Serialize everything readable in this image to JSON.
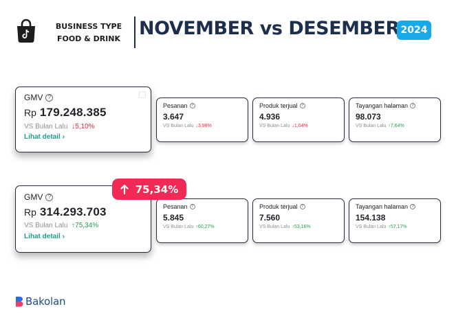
{
  "header": {
    "business_type_line1": "BUSINESS TYPE",
    "business_type_line2": "FOOD & DRINK",
    "title": "NOVEMBER vs DESEMBER",
    "year": "2024",
    "logo_icon": "shopping-bag-tiktok-icon"
  },
  "november": {
    "gmv": {
      "label": "GMV",
      "currency": "Rp",
      "value": "179.248.385",
      "vs_label": "VS Bulan Lalu",
      "change": "5,10%",
      "direction": "down",
      "detail_link": "Lihat detail"
    },
    "metrics": [
      {
        "label": "Pesanan",
        "value": "3.647",
        "vs_label": "VS Bulan Lalu",
        "change": "3,98%",
        "direction": "down"
      },
      {
        "label": "Produk terjual",
        "value": "4.936",
        "vs_label": "VS Bulan Lalu",
        "change": "1,04%",
        "direction": "down"
      },
      {
        "label": "Tayangan halaman",
        "value": "98.073",
        "vs_label": "VS Bulan Lalu",
        "change": "7,64%",
        "direction": "up"
      }
    ]
  },
  "desember": {
    "highlight": "75,34%",
    "gmv": {
      "label": "GMV",
      "currency": "Rp",
      "value": "314.293.703",
      "vs_label": "VS Bulan Lalu",
      "change": "75,34%",
      "direction": "up",
      "detail_link": "Lihat detail"
    },
    "metrics": [
      {
        "label": "Pesanan",
        "value": "5.845",
        "vs_label": "VS Bulan Lalu",
        "change": "60,27%",
        "direction": "up"
      },
      {
        "label": "Produk terjual",
        "value": "7.560",
        "vs_label": "VS Bulan Lalu",
        "change": "53,16%",
        "direction": "up"
      },
      {
        "label": "Tayangan halaman",
        "value": "154.138",
        "vs_label": "VS Bulan Lalu",
        "change": "57,17%",
        "direction": "up"
      }
    ]
  },
  "footer": {
    "brand": "Bakolan"
  },
  "colors": {
    "title": "#1e2f4d",
    "badge_year": "#1aa9e8",
    "highlight": "#f02a55",
    "down": "#e0293b",
    "up": "#24a148",
    "link": "#1f9d8e",
    "brand": "#234a8f"
  }
}
